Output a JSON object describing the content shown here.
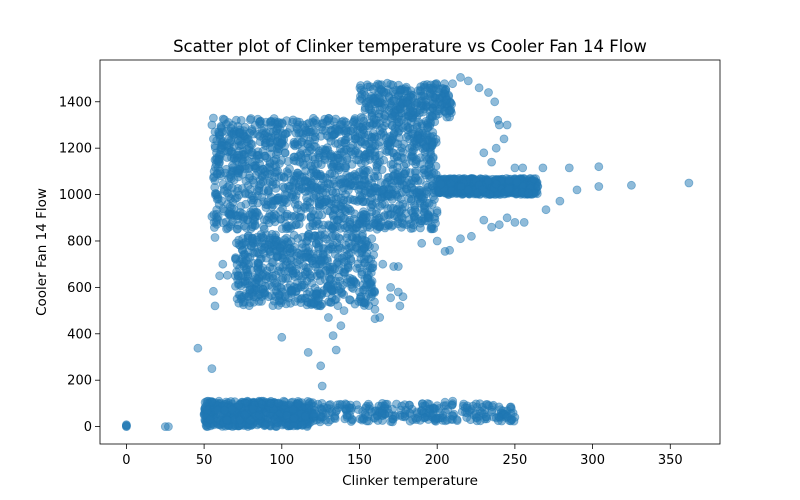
{
  "chart_data": {
    "type": "scatter",
    "title": "Scatter plot of Clinker temperature vs Cooler Fan 14 Flow",
    "xlabel": "Clinker temperature",
    "ylabel": "Cooler Fan 14 Flow",
    "xlim": [
      -17,
      382
    ],
    "ylim": [
      -75,
      1580
    ],
    "xticks": [
      0,
      50,
      100,
      150,
      200,
      250,
      300,
      350
    ],
    "yticks": [
      0,
      200,
      400,
      600,
      800,
      1000,
      1200,
      1400
    ],
    "grid": false,
    "legend": "none",
    "marker_color": "#1f77b4",
    "marker_alpha": 0.5,
    "clusters": [
      {
        "x_range": [
          56,
          200
        ],
        "y_range": [
          850,
          1330
        ],
        "density": "very-high"
      },
      {
        "x_range": [
          70,
          160
        ],
        "y_range": [
          520,
          830
        ],
        "density": "high"
      },
      {
        "x_range": [
          50,
          120
        ],
        "y_range": [
          0,
          110
        ],
        "density": "high"
      },
      {
        "x_range": [
          120,
          250
        ],
        "y_range": [
          20,
          100
        ],
        "density": "medium"
      },
      {
        "x_range": [
          200,
          265
        ],
        "y_range": [
          1000,
          1070
        ],
        "density": "high"
      },
      {
        "x_range": [
          150,
          210
        ],
        "y_range": [
          1330,
          1480
        ],
        "density": "medium"
      }
    ],
    "points": [
      [
        0,
        0
      ],
      [
        0,
        5
      ],
      [
        0,
        2
      ],
      [
        0,
        8
      ],
      [
        25,
        0
      ],
      [
        27,
        0
      ],
      [
        46,
        338
      ],
      [
        55,
        250
      ],
      [
        57,
        815
      ],
      [
        55,
        905
      ],
      [
        56,
        583
      ],
      [
        57,
        520
      ],
      [
        50,
        50
      ],
      [
        52,
        70
      ],
      [
        54,
        30
      ],
      [
        56,
        1330
      ],
      [
        55,
        1300
      ],
      [
        57,
        1270
      ],
      [
        56,
        1240
      ],
      [
        57,
        1210
      ],
      [
        58,
        1180
      ],
      [
        57,
        1150
      ],
      [
        60,
        650
      ],
      [
        62,
        700
      ],
      [
        65,
        652
      ],
      [
        70,
        650
      ],
      [
        75,
        650
      ],
      [
        100,
        385
      ],
      [
        117,
        320
      ],
      [
        125,
        262
      ],
      [
        126,
        175
      ],
      [
        133,
        392
      ],
      [
        135,
        330
      ],
      [
        138,
        435
      ],
      [
        160,
        465
      ],
      [
        163,
        470
      ],
      [
        215,
        1505
      ],
      [
        220,
        1490
      ],
      [
        227,
        1460
      ],
      [
        233,
        1440
      ],
      [
        237,
        1400
      ],
      [
        239,
        1320
      ],
      [
        240,
        1300
      ],
      [
        245,
        1300
      ],
      [
        243,
        1240
      ],
      [
        238,
        1200
      ],
      [
        235,
        1140
      ],
      [
        230,
        1180
      ],
      [
        250,
        1115
      ],
      [
        255,
        1115
      ],
      [
        268,
        1115
      ],
      [
        285,
        1115
      ],
      [
        304,
        1120
      ],
      [
        290,
        1020
      ],
      [
        304,
        1035
      ],
      [
        325,
        1040
      ],
      [
        362,
        1050
      ],
      [
        279,
        972
      ],
      [
        270,
        935
      ],
      [
        245,
        900
      ],
      [
        250,
        880
      ],
      [
        256,
        880
      ],
      [
        240,
        870
      ],
      [
        235,
        860
      ],
      [
        230,
        890
      ],
      [
        222,
        820
      ],
      [
        215,
        810
      ],
      [
        208,
        760
      ],
      [
        205,
        755
      ],
      [
        200,
        800
      ],
      [
        190,
        790
      ],
      [
        240,
        40
      ],
      [
        245,
        42
      ],
      [
        250,
        40
      ],
      [
        230,
        55
      ],
      [
        225,
        55
      ],
      [
        210,
        110
      ],
      [
        205,
        105
      ],
      [
        200,
        90
      ],
      [
        195,
        60
      ],
      [
        190,
        70
      ],
      [
        170,
        600
      ],
      [
        175,
        580
      ],
      [
        178,
        560
      ],
      [
        176,
        520
      ],
      [
        170,
        555
      ],
      [
        160,
        505
      ],
      [
        155,
        640
      ],
      [
        165,
        700
      ],
      [
        172,
        690
      ],
      [
        175,
        690
      ],
      [
        130,
        470
      ],
      [
        135,
        550
      ],
      [
        140,
        500
      ],
      [
        145,
        600
      ],
      [
        150,
        580
      ]
    ]
  }
}
